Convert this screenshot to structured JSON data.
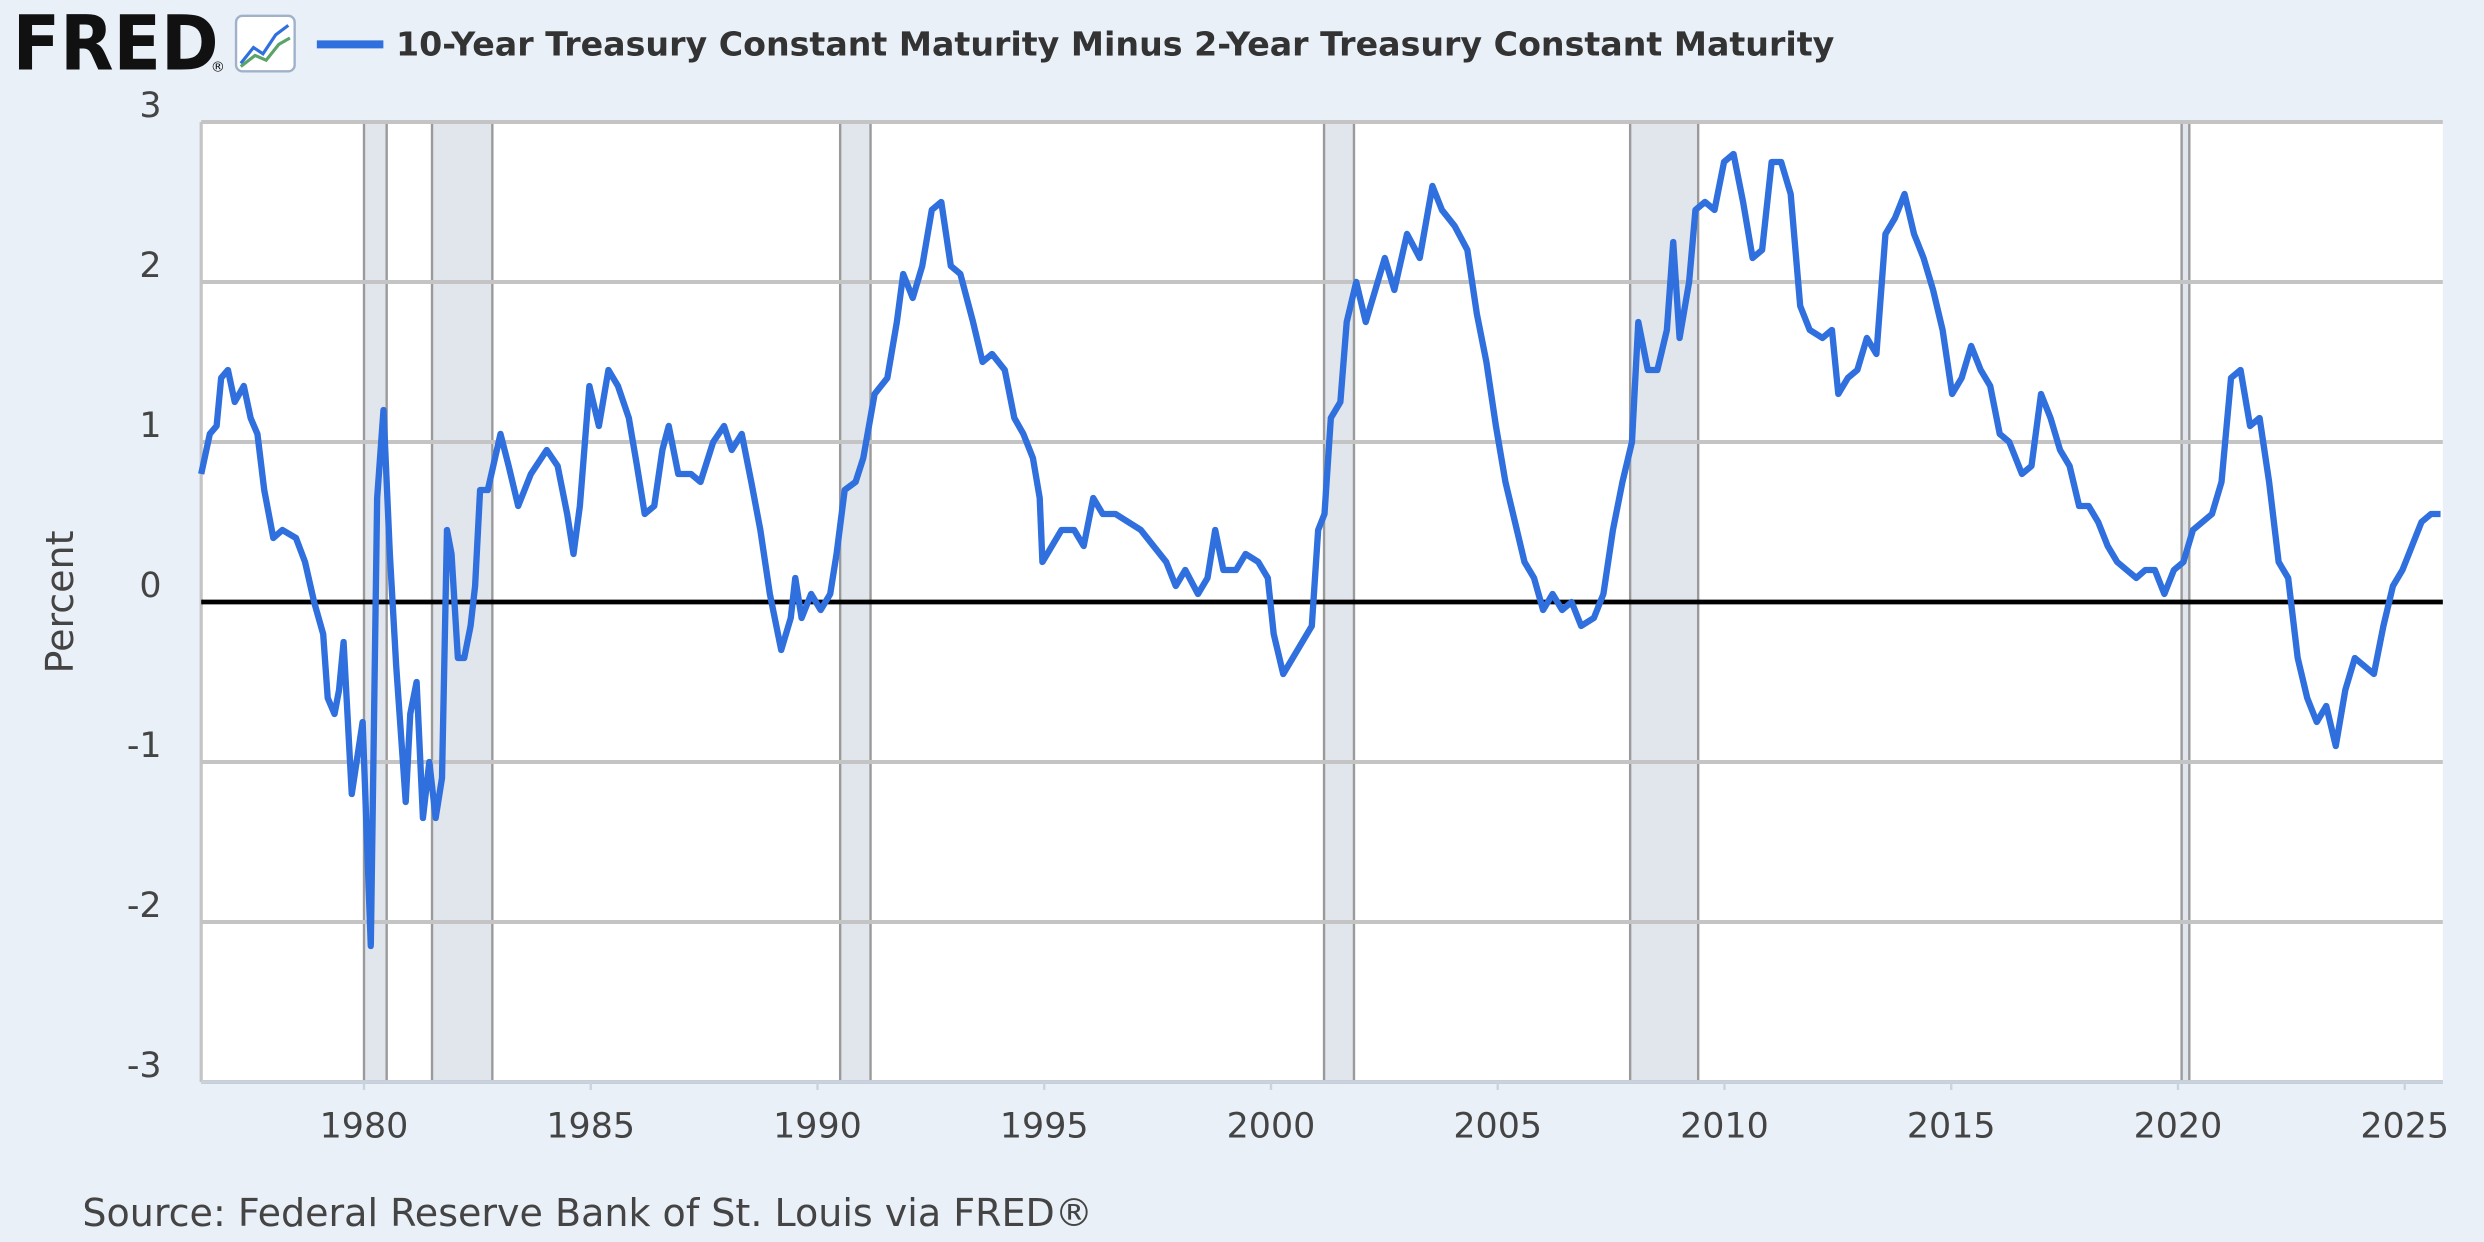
{
  "header": {
    "logo": "FRED",
    "logo_mark": "®"
  },
  "chart_data": {
    "type": "line",
    "y_label": "Percent",
    "source": "Source: Federal Reserve Bank of St. Louis via FRED®",
    "xlim": [
      1976.41,
      2025.84
    ],
    "xticks": [
      1980,
      1985,
      1990,
      1995,
      2000,
      2005,
      2010,
      2015,
      2020,
      2025
    ],
    "ylim": [
      -3,
      3
    ],
    "yticks": [
      -3,
      -2,
      -1,
      0,
      1,
      2,
      3
    ],
    "grid": true,
    "reference_line": 0,
    "recession_color": "#e1e5ec",
    "recessions": [
      [
        1980.0,
        1980.5
      ],
      [
        1981.5,
        1982.83
      ],
      [
        1990.5,
        1991.17
      ],
      [
        2001.17,
        2001.83
      ],
      [
        2007.92,
        2009.42
      ],
      [
        2020.08,
        2020.25
      ]
    ],
    "x": [
      1976.41,
      1976.6,
      1976.75,
      1976.85,
      1977.0,
      1977.15,
      1977.35,
      1977.5,
      1977.65,
      1977.8,
      1978.0,
      1978.2,
      1978.5,
      1978.7,
      1978.9,
      1979.1,
      1979.2,
      1979.35,
      1979.45,
      1979.55,
      1979.73,
      1979.97,
      1980.15,
      1980.29,
      1980.43,
      1980.57,
      1980.71,
      1980.92,
      1981.02,
      1981.16,
      1981.3,
      1981.44,
      1981.58,
      1981.72,
      1981.83,
      1981.93,
      1982.07,
      1982.21,
      1982.35,
      1982.45,
      1982.56,
      1982.73,
      1983.01,
      1983.19,
      1983.4,
      1983.68,
      1984.03,
      1984.27,
      1984.48,
      1984.62,
      1984.76,
      1984.97,
      1985.18,
      1985.39,
      1985.6,
      1985.84,
      1986.02,
      1986.19,
      1986.4,
      1986.58,
      1986.72,
      1986.93,
      1987.21,
      1987.42,
      1987.7,
      1987.94,
      1988.11,
      1988.33,
      1988.54,
      1988.74,
      1988.95,
      1989.2,
      1989.41,
      1989.51,
      1989.65,
      1989.86,
      1990.07,
      1990.28,
      1990.42,
      1990.6,
      1990.84,
      1991.01,
      1991.26,
      1991.54,
      1991.75,
      1991.89,
      1992.1,
      1992.31,
      1992.52,
      1992.73,
      1992.94,
      1993.15,
      1993.43,
      1993.64,
      1993.85,
      1994.13,
      1994.34,
      1994.54,
      1994.75,
      1994.9,
      1994.96,
      1995.17,
      1995.38,
      1995.66,
      1995.87,
      1996.08,
      1996.29,
      1996.57,
      1996.85,
      1997.13,
      1997.41,
      1997.69,
      1997.9,
      1998.11,
      1998.39,
      1998.6,
      1998.77,
      1998.95,
      1999.23,
      1999.44,
      1999.72,
      1999.93,
      2000.06,
      2000.27,
      2000.48,
      2000.69,
      2000.9,
      2001.04,
      2001.18,
      2001.32,
      2001.53,
      2001.67,
      2001.88,
      2002.09,
      2002.3,
      2002.51,
      2002.72,
      2003.0,
      2003.28,
      2003.56,
      2003.77,
      2004.05,
      2004.33,
      2004.54,
      2004.75,
      2004.96,
      2005.17,
      2005.38,
      2005.59,
      2005.8,
      2006.0,
      2006.21,
      2006.42,
      2006.63,
      2006.84,
      2007.12,
      2007.33,
      2007.54,
      2007.75,
      2007.96,
      2008.1,
      2008.31,
      2008.52,
      2008.73,
      2008.87,
      2009.01,
      2009.22,
      2009.36,
      2009.57,
      2009.78,
      2009.99,
      2010.2,
      2010.41,
      2010.62,
      2010.83,
      2011.04,
      2011.25,
      2011.46,
      2011.67,
      2011.88,
      2012.16,
      2012.37,
      2012.51,
      2012.72,
      2012.93,
      2013.14,
      2013.35,
      2013.55,
      2013.76,
      2013.97,
      2014.18,
      2014.39,
      2014.6,
      2014.81,
      2015.02,
      2015.23,
      2015.44,
      2015.65,
      2015.86,
      2016.07,
      2016.28,
      2016.56,
      2016.77,
      2016.98,
      2017.19,
      2017.4,
      2017.61,
      2017.82,
      2018.03,
      2018.24,
      2018.45,
      2018.66,
      2018.87,
      2019.08,
      2019.28,
      2019.49,
      2019.7,
      2019.91,
      2020.12,
      2020.33,
      2020.54,
      2020.75,
      2020.96,
      2021.17,
      2021.38,
      2021.59,
      2021.8,
      2022.01,
      2022.22,
      2022.43,
      2022.64,
      2022.85,
      2023.06,
      2023.27,
      2023.48,
      2023.69,
      2023.9,
      2024.11,
      2024.32,
      2024.53,
      2024.74,
      2024.95,
      2025.16,
      2025.37,
      2025.58,
      2025.79
    ],
    "series": [
      {
        "name": "10-Year Treasury Constant Maturity Minus 2-Year Treasury Constant Maturity",
        "color": "#2f6fde",
        "values": [
          0.8,
          1.05,
          1.1,
          1.4,
          1.45,
          1.25,
          1.35,
          1.15,
          1.05,
          0.7,
          0.4,
          0.45,
          0.4,
          0.25,
          0.0,
          -0.2,
          -0.6,
          -0.7,
          -0.55,
          -0.25,
          -1.2,
          -0.75,
          -2.15,
          0.65,
          1.2,
          0.3,
          -0.4,
          -1.25,
          -0.7,
          -0.5,
          -1.35,
          -1.0,
          -1.35,
          -1.1,
          0.45,
          0.3,
          -0.35,
          -0.35,
          -0.15,
          0.1,
          0.7,
          0.7,
          1.05,
          0.85,
          0.6,
          0.8,
          0.95,
          0.85,
          0.55,
          0.3,
          0.6,
          1.35,
          1.1,
          1.45,
          1.35,
          1.15,
          0.85,
          0.55,
          0.6,
          0.95,
          1.1,
          0.8,
          0.8,
          0.75,
          1.0,
          1.1,
          0.95,
          1.05,
          0.75,
          0.45,
          0.05,
          -0.3,
          -0.1,
          0.15,
          -0.1,
          0.05,
          -0.05,
          0.05,
          0.3,
          0.7,
          0.75,
          0.9,
          1.3,
          1.4,
          1.75,
          2.05,
          1.9,
          2.1,
          2.45,
          2.5,
          2.1,
          2.05,
          1.75,
          1.5,
          1.55,
          1.45,
          1.15,
          1.05,
          0.9,
          0.65,
          0.25,
          0.35,
          0.45,
          0.45,
          0.35,
          0.65,
          0.55,
          0.55,
          0.5,
          0.45,
          0.35,
          0.25,
          0.1,
          0.2,
          0.05,
          0.15,
          0.45,
          0.2,
          0.2,
          0.3,
          0.25,
          0.15,
          -0.2,
          -0.45,
          -0.35,
          -0.25,
          -0.15,
          0.45,
          0.55,
          1.15,
          1.25,
          1.75,
          2.0,
          1.75,
          1.95,
          2.15,
          1.95,
          2.3,
          2.15,
          2.6,
          2.45,
          2.35,
          2.2,
          1.8,
          1.5,
          1.1,
          0.75,
          0.5,
          0.25,
          0.15,
          -0.05,
          0.05,
          -0.05,
          0.0,
          -0.15,
          -0.1,
          0.05,
          0.45,
          0.75,
          1.0,
          1.75,
          1.45,
          1.45,
          1.7,
          2.25,
          1.65,
          2.0,
          2.45,
          2.5,
          2.45,
          2.75,
          2.8,
          2.5,
          2.15,
          2.2,
          2.75,
          2.75,
          2.55,
          1.85,
          1.7,
          1.65,
          1.7,
          1.3,
          1.4,
          1.45,
          1.65,
          1.55,
          2.3,
          2.4,
          2.55,
          2.3,
          2.15,
          1.95,
          1.7,
          1.3,
          1.4,
          1.6,
          1.45,
          1.35,
          1.05,
          1.0,
          0.8,
          0.85,
          1.3,
          1.15,
          0.95,
          0.85,
          0.6,
          0.6,
          0.5,
          0.35,
          0.25,
          0.2,
          0.15,
          0.2,
          0.2,
          0.05,
          0.2,
          0.25,
          0.45,
          0.5,
          0.55,
          0.75,
          1.4,
          1.45,
          1.1,
          1.15,
          0.75,
          0.25,
          0.15,
          -0.35,
          -0.6,
          -0.75,
          -0.65,
          -0.9,
          -0.55,
          -0.35,
          -0.4,
          -0.45,
          -0.15,
          0.1,
          0.2,
          0.35,
          0.5,
          0.55,
          0.55
        ]
      }
    ]
  }
}
